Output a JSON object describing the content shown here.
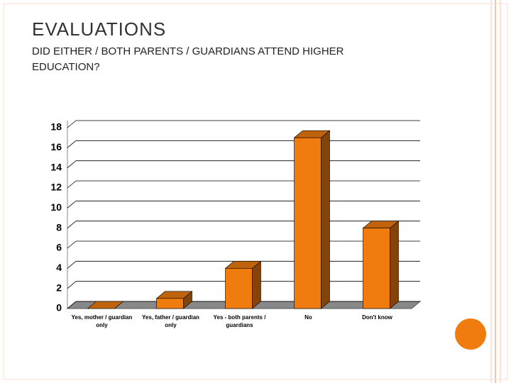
{
  "title": "EVALUATIONS",
  "subtitle": "DID EITHER / BOTH PARENTS / GUARDIANS ATTEND HIGHER EDUCATION?",
  "chart_data": {
    "type": "bar",
    "categories": [
      "Yes, mother / guardian only",
      "Yes, father / guardian only",
      "Yes - both parents / guardians",
      "No",
      "Don't know"
    ],
    "values": [
      0,
      1,
      4,
      17,
      8
    ],
    "color": "#f07c10",
    "ylim": [
      0,
      18
    ],
    "yticks": [
      0,
      2,
      4,
      6,
      8,
      10,
      12,
      14,
      16,
      18
    ],
    "grid": true
  }
}
